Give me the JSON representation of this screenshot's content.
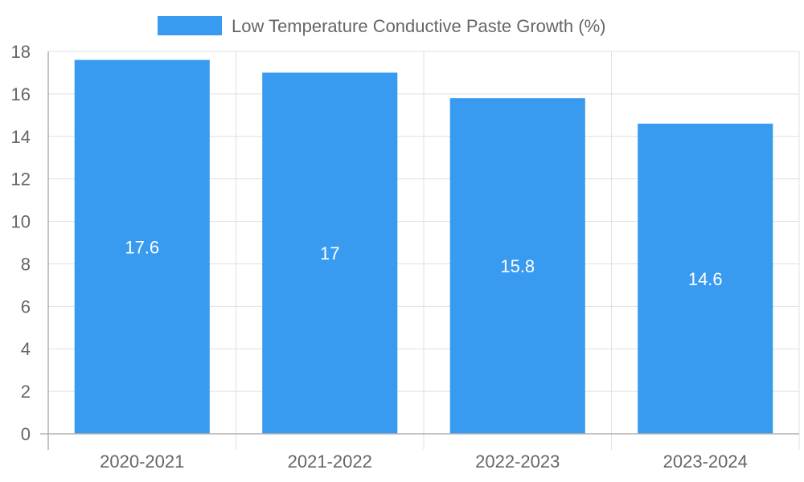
{
  "chart_data": {
    "type": "bar",
    "categories": [
      "2020-2021",
      "2021-2022",
      "2022-2023",
      "2023-2024"
    ],
    "series": [
      {
        "name": "Low Temperature Conductive Paste Growth (%)",
        "values": [
          17.6,
          17,
          15.8,
          14.6
        ],
        "color": "#389BF0"
      }
    ],
    "data_labels": [
      "17.6",
      "17",
      "15.8",
      "14.6"
    ],
    "y_ticks": [
      "0",
      "2",
      "4",
      "6",
      "8",
      "10",
      "12",
      "14",
      "16",
      "18"
    ],
    "ylim": [
      0,
      18
    ],
    "grid": true,
    "legend_position": "top",
    "colors": {
      "grid": "#e0e0e0",
      "axis": "#b0b0b0",
      "tick_text": "#666666",
      "value_text": "#ffffff"
    }
  }
}
